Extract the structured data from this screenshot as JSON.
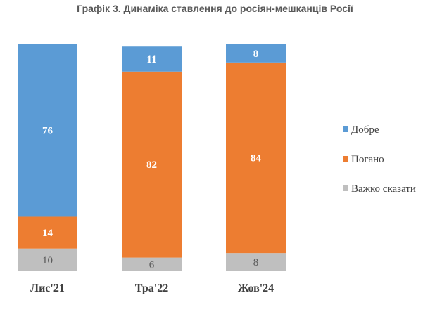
{
  "title": "Графік 3. Динаміка ставлення до росіян-мешканців Росії",
  "chart_data": {
    "type": "bar",
    "stacked": true,
    "categories": [
      "Лис'21",
      "Тра'22",
      "Жов'24"
    ],
    "series": [
      {
        "name": "Важко сказати",
        "color": "#BFBFBF",
        "values": [
          10,
          6,
          8
        ]
      },
      {
        "name": "Погано",
        "color": "#ED7D31",
        "values": [
          14,
          82,
          84
        ]
      },
      {
        "name": "Добре",
        "color": "#5B9BD5",
        "values": [
          76,
          11,
          8
        ]
      }
    ],
    "legend_order": [
      "Добре",
      "Погано",
      "Важко сказати"
    ],
    "legend_position": "right",
    "ylim": [
      0,
      100
    ],
    "grid": false
  }
}
